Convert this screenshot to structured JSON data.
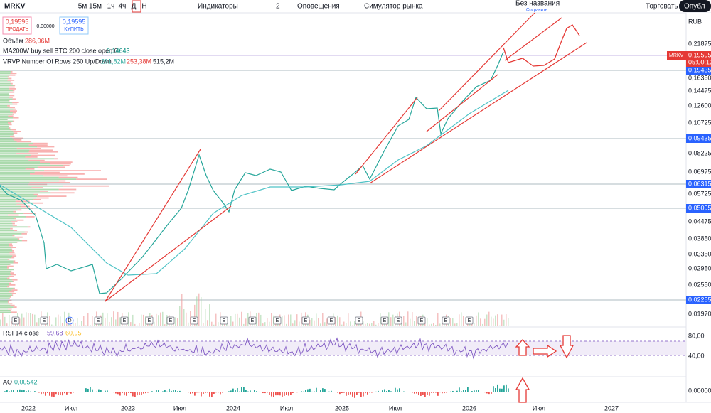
{
  "toolbar": {
    "symbol": "MRKV",
    "intervals": [
      "5м",
      "15м",
      "1ч",
      "4ч",
      "Д",
      "Н"
    ],
    "indicators": "Индикаторы",
    "layouts": "2",
    "alerts": "Оповещения",
    "replay": "Симулятор рынка",
    "layout_name": "Без названия",
    "save": "Сохранить",
    "trade": "Торговать",
    "publish": "Опубл"
  },
  "order": {
    "sell_price": "0,19595",
    "sell": "ПРОДАТЬ",
    "spread": "0,00000",
    "buy_price": "0,19595",
    "buy": "КУПИТЬ"
  },
  "legend": {
    "volume": "Объём",
    "volume_value": "286,06M",
    "ma": "MA200W buy sell BTC 200 close open 0",
    "ma_value": "0,14643",
    "vrvp": "VRVP Number Of Rows 250 Up/Down",
    "vrvp_up": "261,82M",
    "vrvp_down": "253,38M",
    "vrvp_total": "515,2M"
  },
  "price_axis": {
    "currency": "RUB",
    "ticks": [
      "0,21875",
      "0,16350",
      "0,14475",
      "0,12600",
      "0,10725",
      "0,08225",
      "0,06975",
      "0,05725",
      "0,04475",
      "0,03850",
      "0,03350",
      "0,02950",
      "0,02550",
      "0,01970"
    ],
    "levels": [
      "0,19435",
      "0,09435",
      "0,06315",
      "0,05095",
      "0,02255"
    ],
    "last_symbol": "MRKV",
    "last_price": "0,19595",
    "countdown": "05:00:13"
  },
  "events": [
    "E",
    "E",
    "D",
    "E",
    "E",
    "E",
    "E",
    "E",
    "E",
    "E",
    "E",
    "E",
    "E",
    "E",
    "E",
    "E",
    "E",
    "E",
    "E"
  ],
  "rsi": {
    "title": "RSI 14 close",
    "value": "59,68",
    "ma_value": "60,95",
    "ticks": [
      "80,00",
      "40,00"
    ]
  },
  "ao": {
    "title": "AO",
    "value": "0,00542",
    "tick": "0,00000"
  },
  "time_axis": [
    "2022",
    "Июл",
    "2023",
    "Июл",
    "2024",
    "Июл",
    "2025",
    "Июл",
    "2026",
    "Июл",
    "2027"
  ]
}
